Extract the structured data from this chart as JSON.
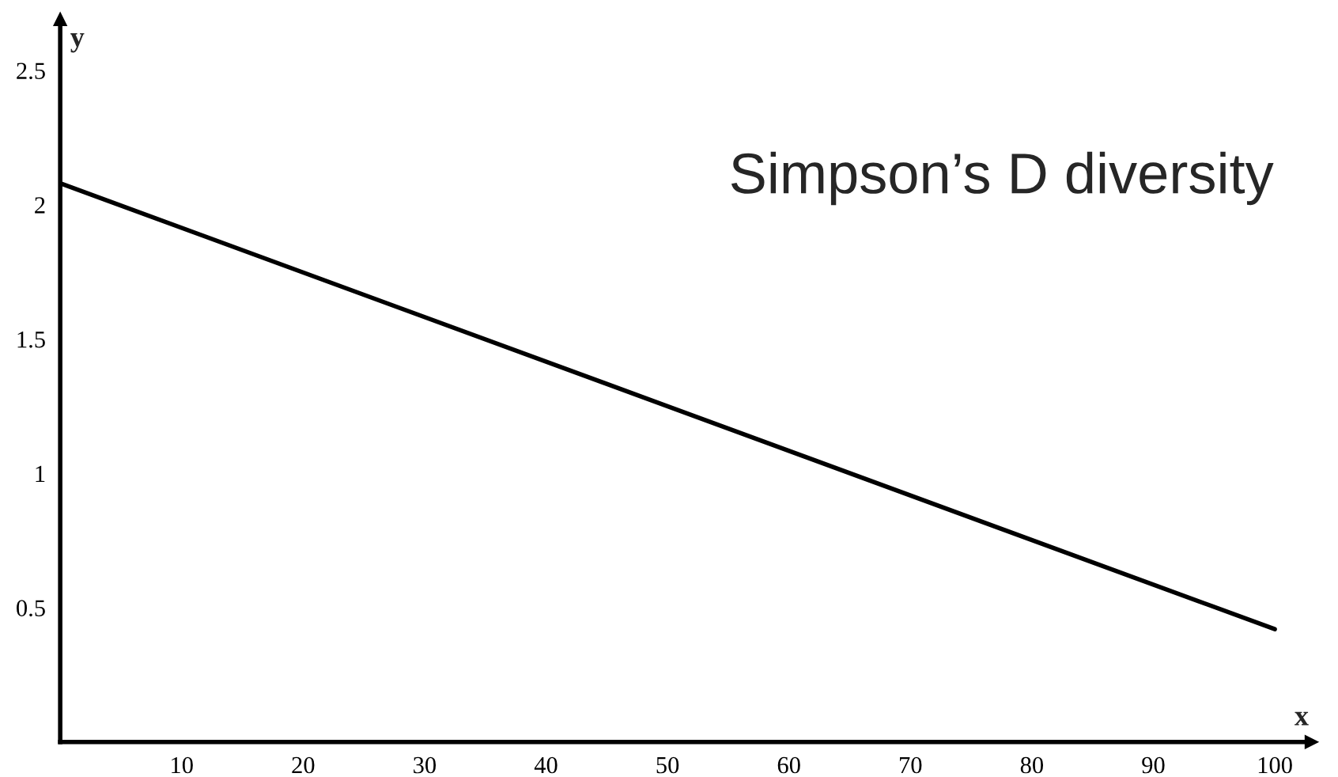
{
  "chart_data": {
    "type": "line",
    "xlabel": "x",
    "ylabel": "y",
    "annotations": [
      "Simpson’s D diversity"
    ],
    "x": [
      0,
      100
    ],
    "series": [
      {
        "color": "#000000",
        "values": [
          2.08,
          0.42
        ]
      }
    ],
    "xlim": [
      0,
      103
    ],
    "ylim": [
      0,
      2.69
    ],
    "xticks": [
      10,
      20,
      30,
      40,
      50,
      60,
      70,
      80,
      90,
      100
    ],
    "yticks": [
      0.5,
      1,
      1.5,
      2,
      2.5
    ],
    "grid": false,
    "legend": false,
    "marker": "none",
    "line_style": "solid"
  }
}
